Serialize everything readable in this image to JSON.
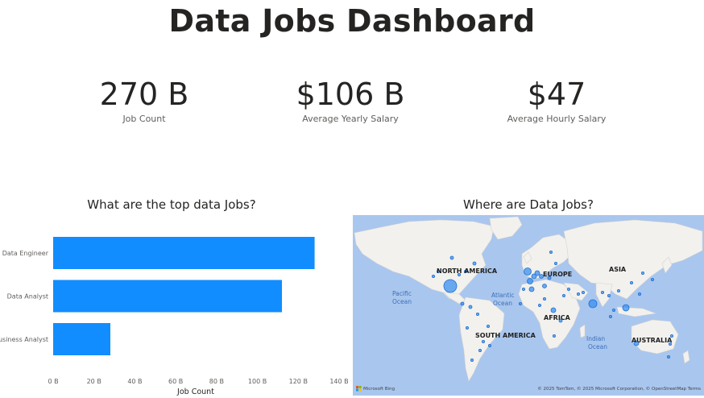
{
  "header": {
    "title": "Data Jobs Dashboard"
  },
  "kpis": [
    {
      "value": "270 B",
      "label": "Job Count"
    },
    {
      "value": "$106 B",
      "label": "Average Yearly Salary"
    },
    {
      "value": "$47",
      "label": "Average Hourly Salary"
    }
  ],
  "bar_chart": {
    "title": "What are the top data Jobs?"
  },
  "map_chart": {
    "title": "Where are Data Jobs?",
    "continent_labels": [
      "NORTH AMERICA",
      "EUROPE",
      "ASIA",
      "AFRICA",
      "SOUTH AMERICA",
      "AUSTRALIA"
    ],
    "ocean_labels": [
      "Pacific",
      "Ocean",
      "Atlantic",
      "Ocean",
      "Indian",
      "Ocean"
    ],
    "logo_text": "Microsoft Bing",
    "attribution": "© 2025 TomTom, © 2025 Microsoft Corporation, © OpenStreetMap  Terms",
    "colors": {
      "water": "#a9c6ee",
      "land": "#f2f1ee",
      "bubble_fill": "#3a8fef",
      "bubble_stroke": "#1f6fd1"
    }
  },
  "chart_data": [
    {
      "type": "bar",
      "orientation": "horizontal",
      "title": "What are the top data Jobs?",
      "categories": [
        "Data Engineer",
        "Data Analyst",
        "Business Analyst"
      ],
      "values": [
        128,
        112,
        28
      ],
      "value_unit": "B",
      "xlabel": "Job Count",
      "ylabel": "",
      "xlim": [
        0,
        140
      ],
      "xticks": [
        "0 B",
        "20 B",
        "40 B",
        "60 B",
        "80 B",
        "100 B",
        "120 B",
        "140 B"
      ],
      "color": "#118dff",
      "grid": false
    }
  ]
}
